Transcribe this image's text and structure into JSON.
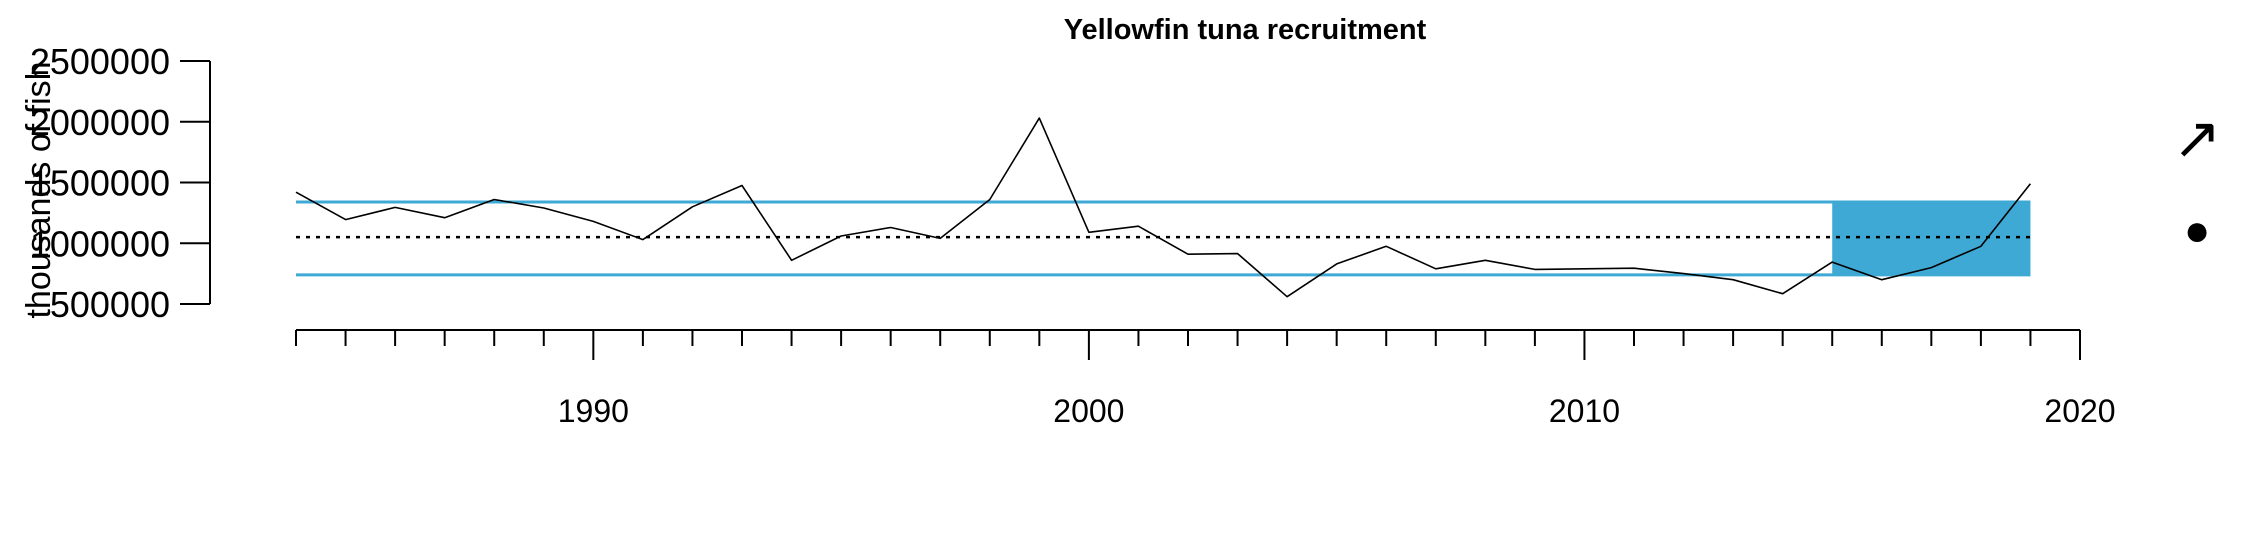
{
  "chart_data": {
    "type": "line",
    "title": "Yellowfin tuna recruitment",
    "ylabel": "thousands of fish",
    "xlabel": "",
    "x": [
      1984,
      1985,
      1986,
      1987,
      1988,
      1989,
      1990,
      1991,
      1992,
      1993,
      1994,
      1995,
      1996,
      1997,
      1998,
      1999,
      2000,
      2001,
      2002,
      2003,
      2004,
      2005,
      2006,
      2007,
      2008,
      2009,
      2010,
      2011,
      2012,
      2013,
      2014,
      2015,
      2016,
      2017,
      2018,
      2019
    ],
    "values": [
      1420000,
      1195000,
      1295000,
      1210000,
      1360000,
      1290000,
      1180000,
      1030000,
      1300000,
      1475000,
      860000,
      1060000,
      1130000,
      1040000,
      1360000,
      2030000,
      1090000,
      1140000,
      910000,
      915000,
      560000,
      830000,
      975000,
      790000,
      860000,
      785000,
      790000,
      795000,
      750000,
      700000,
      585000,
      845000,
      700000,
      800000,
      975000,
      1490000
    ],
    "yticks": [
      "500000",
      "1000000",
      "1500000",
      "2000000",
      "2500000"
    ],
    "ytick_values": [
      500000,
      1000000,
      1500000,
      2000000,
      2500000
    ],
    "xticks": [
      "1990",
      "2000",
      "2010",
      "2020"
    ],
    "xtick_values": [
      1990,
      2000,
      2010,
      2020
    ],
    "xlim": [
      1984,
      2020
    ],
    "ylim": [
      500000,
      2500000
    ],
    "mean": 1050000,
    "upper_sd": 1340000,
    "lower_sd": 740000,
    "highlight_x": [
      2015,
      2019
    ],
    "trend_symbol": "↗",
    "status_symbol": "●",
    "colors": {
      "band": "#3EA9D5",
      "line": "#000000"
    }
  }
}
